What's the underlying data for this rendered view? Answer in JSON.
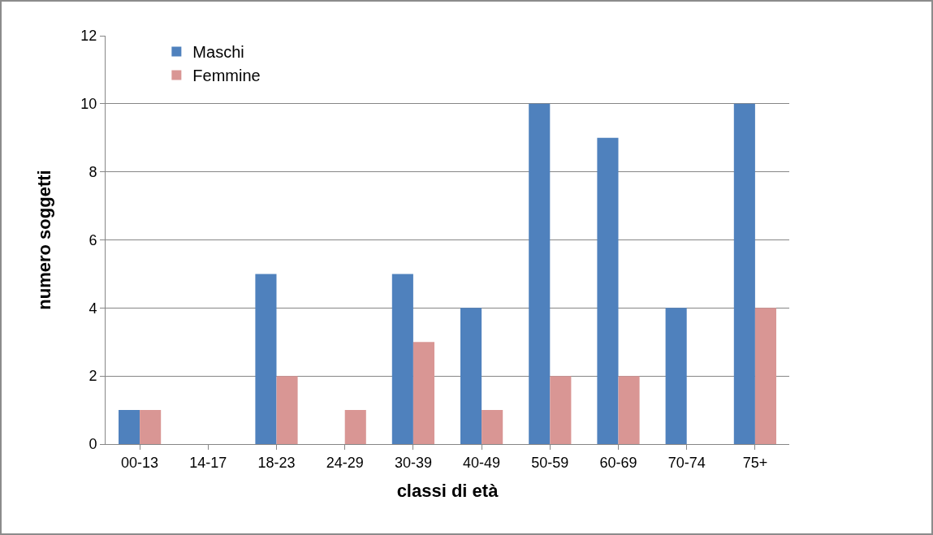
{
  "chart_data": {
    "type": "bar",
    "xlabel": "classi di età",
    "ylabel": "numero soggetti",
    "categories": [
      "00-13",
      "14-17",
      "18-23",
      "24-29",
      "30-39",
      "40-49",
      "50-59",
      "60-69",
      "70-74",
      "75+"
    ],
    "series": [
      {
        "name": "Maschi",
        "color": "#4f81bd",
        "values": [
          1,
          0,
          5,
          0,
          5,
          4,
          10,
          9,
          4,
          10
        ]
      },
      {
        "name": "Femmine",
        "color": "#d99694",
        "values": [
          1,
          0,
          2,
          1,
          3,
          1,
          2,
          2,
          0,
          4
        ]
      }
    ],
    "ylim": [
      0,
      12
    ],
    "yticks": [
      0,
      2,
      4,
      6,
      8,
      10,
      12
    ],
    "grid": "y",
    "legend": "top left"
  }
}
